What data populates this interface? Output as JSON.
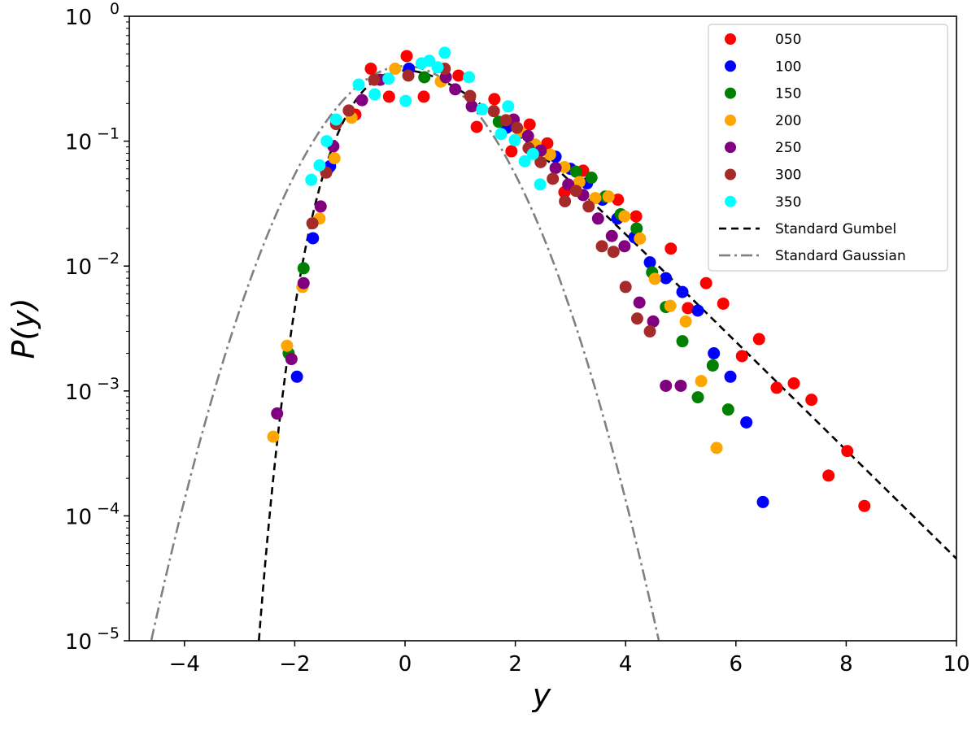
{
  "chart_data": {
    "type": "scatter",
    "xlabel": "y",
    "ylabel": "P(y)",
    "xlim": [
      -5,
      10
    ],
    "ylim": [
      1e-05,
      1
    ],
    "yscale": "log",
    "grid": false,
    "legend_position": "top-right",
    "xticks": [
      -4,
      -2,
      0,
      2,
      4,
      6,
      8,
      10
    ],
    "xtick_labels": [
      "−4",
      "−2",
      "0",
      "2",
      "4",
      "6",
      "8",
      "10"
    ],
    "ytick_base": "10",
    "ytick_values": [
      1,
      0.1,
      0.01,
      0.001,
      0.0001,
      1e-05
    ],
    "ytick_exponents": [
      "0",
      "−1",
      "−2",
      "−3",
      "−4",
      "−5"
    ],
    "series": [
      {
        "name": "050",
        "color": "#ff0000",
        "points": [
          [
            0.03,
            0.48
          ],
          [
            -0.62,
            0.38
          ],
          [
            -0.29,
            0.227
          ],
          [
            0.34,
            0.227
          ],
          [
            0.97,
            0.335
          ],
          [
            1.3,
            0.13
          ],
          [
            1.62,
            0.217
          ],
          [
            1.93,
            0.083
          ],
          [
            2.26,
            0.136
          ],
          [
            -0.9,
            0.163
          ],
          [
            2.58,
            0.096
          ],
          [
            3.23,
            0.058
          ],
          [
            2.89,
            0.039
          ],
          [
            3.86,
            0.034
          ],
          [
            4.19,
            0.025
          ],
          [
            4.82,
            0.0138
          ],
          [
            5.46,
            0.0073
          ],
          [
            5.77,
            0.005
          ],
          [
            5.13,
            0.0046
          ],
          [
            6.42,
            0.0026
          ],
          [
            6.11,
            0.0019
          ],
          [
            6.74,
            0.00106
          ],
          [
            7.05,
            0.00115
          ],
          [
            7.37,
            0.00085
          ],
          [
            8.02,
            0.00033
          ],
          [
            7.68,
            0.00021
          ],
          [
            8.33,
            0.00012
          ]
        ]
      },
      {
        "name": "100",
        "color": "#0000ff",
        "points": [
          [
            -1.96,
            0.0013
          ],
          [
            -1.67,
            0.0167
          ],
          [
            -1.4,
            0.06
          ],
          [
            -1.36,
            0.063
          ],
          [
            0.07,
            0.38
          ],
          [
            1.84,
            0.128
          ],
          [
            2.73,
            0.075
          ],
          [
            3.0,
            0.06
          ],
          [
            3.3,
            0.046
          ],
          [
            3.58,
            0.034
          ],
          [
            3.85,
            0.024
          ],
          [
            4.16,
            0.017
          ],
          [
            4.44,
            0.0107
          ],
          [
            4.73,
            0.008
          ],
          [
            5.03,
            0.0062
          ],
          [
            5.31,
            0.0044
          ],
          [
            5.6,
            0.002
          ],
          [
            5.9,
            0.0013
          ],
          [
            6.19,
            0.00056
          ],
          [
            6.49,
            0.000129
          ]
        ]
      },
      {
        "name": "150",
        "color": "#008000",
        "points": [
          [
            -2.11,
            0.002
          ],
          [
            -1.84,
            0.0096
          ],
          [
            0.35,
            0.325
          ],
          [
            1.7,
            0.143
          ],
          [
            3.1,
            0.057
          ],
          [
            3.38,
            0.051
          ],
          [
            3.63,
            0.036
          ],
          [
            3.91,
            0.026
          ],
          [
            4.2,
            0.02
          ],
          [
            4.48,
            0.0089
          ],
          [
            4.73,
            0.0047
          ],
          [
            5.03,
            0.0025
          ],
          [
            5.58,
            0.0016
          ],
          [
            5.31,
            0.00089
          ],
          [
            5.86,
            0.00071
          ]
        ]
      },
      {
        "name": "200",
        "color": "#ffa500",
        "points": [
          [
            -2.39,
            0.00043
          ],
          [
            -2.14,
            0.0023
          ],
          [
            -1.86,
            0.0068
          ],
          [
            -1.55,
            0.024
          ],
          [
            -1.28,
            0.073
          ],
          [
            -0.97,
            0.154
          ],
          [
            -0.18,
            0.38
          ],
          [
            0.65,
            0.3
          ],
          [
            2.09,
            0.119
          ],
          [
            2.36,
            0.094
          ],
          [
            2.63,
            0.078
          ],
          [
            2.89,
            0.062
          ],
          [
            3.16,
            0.047
          ],
          [
            3.45,
            0.035
          ],
          [
            3.69,
            0.036
          ],
          [
            3.98,
            0.025
          ],
          [
            4.26,
            0.0166
          ],
          [
            4.53,
            0.0079
          ],
          [
            4.81,
            0.0048
          ],
          [
            5.09,
            0.0036
          ],
          [
            5.37,
            0.0012
          ],
          [
            5.65,
            0.00035
          ]
        ]
      },
      {
        "name": "250",
        "color": "#800080",
        "points": [
          [
            -2.32,
            0.00066
          ],
          [
            -2.06,
            0.0018
          ],
          [
            -1.84,
            0.0073
          ],
          [
            -1.53,
            0.03
          ],
          [
            -1.3,
            0.091
          ],
          [
            -0.78,
            0.213
          ],
          [
            -0.45,
            0.31
          ],
          [
            0.74,
            0.325
          ],
          [
            0.91,
            0.26
          ],
          [
            1.21,
            0.19
          ],
          [
            1.97,
            0.149
          ],
          [
            2.23,
            0.11
          ],
          [
            2.46,
            0.084
          ],
          [
            2.73,
            0.061
          ],
          [
            2.96,
            0.045
          ],
          [
            3.23,
            0.037
          ],
          [
            3.5,
            0.024
          ],
          [
            3.75,
            0.0174
          ],
          [
            3.98,
            0.0144
          ],
          [
            4.25,
            0.0051
          ],
          [
            4.5,
            0.0036
          ],
          [
            4.73,
            0.0011
          ],
          [
            5.0,
            0.0011
          ]
        ]
      },
      {
        "name": "300",
        "color": "#a52a2a",
        "points": [
          [
            -1.68,
            0.022
          ],
          [
            -1.43,
            0.056
          ],
          [
            -1.25,
            0.137
          ],
          [
            -1.02,
            0.176
          ],
          [
            -0.56,
            0.31
          ],
          [
            0.06,
            0.335
          ],
          [
            0.72,
            0.38
          ],
          [
            1.18,
            0.23
          ],
          [
            1.61,
            0.174
          ],
          [
            1.83,
            0.147
          ],
          [
            2.03,
            0.128
          ],
          [
            2.24,
            0.088
          ],
          [
            2.46,
            0.068
          ],
          [
            2.68,
            0.05
          ],
          [
            2.9,
            0.033
          ],
          [
            3.1,
            0.04
          ],
          [
            3.33,
            0.03
          ],
          [
            3.57,
            0.0144
          ],
          [
            3.78,
            0.013
          ],
          [
            4.0,
            0.0068
          ],
          [
            4.21,
            0.0038
          ],
          [
            4.44,
            0.003
          ]
        ]
      },
      {
        "name": "350",
        "color": "#00ffff",
        "points": [
          [
            0.72,
            0.51
          ],
          [
            0.01,
            0.21
          ],
          [
            -1.7,
            0.049
          ],
          [
            -1.55,
            0.064
          ],
          [
            -1.42,
            0.1
          ],
          [
            -1.25,
            0.149
          ],
          [
            -0.84,
            0.284
          ],
          [
            -0.55,
            0.237
          ],
          [
            -0.3,
            0.316
          ],
          [
            0.3,
            0.42
          ],
          [
            0.44,
            0.44
          ],
          [
            0.59,
            0.39
          ],
          [
            1.16,
            0.325
          ],
          [
            1.87,
            0.19
          ],
          [
            1.74,
            0.114
          ],
          [
            2.17,
            0.069
          ],
          [
            1.99,
            0.102
          ],
          [
            1.4,
            0.18
          ],
          [
            2.32,
            0.079
          ],
          [
            2.45,
            0.045
          ]
        ]
      }
    ],
    "curves": [
      {
        "name": "Standard Gumbel",
        "function": "gumbel",
        "color": "#000000",
        "style": "dashed"
      },
      {
        "name": "Standard Gaussian",
        "function": "gaussian",
        "color": "#808080",
        "style": "dash-dot"
      }
    ]
  }
}
